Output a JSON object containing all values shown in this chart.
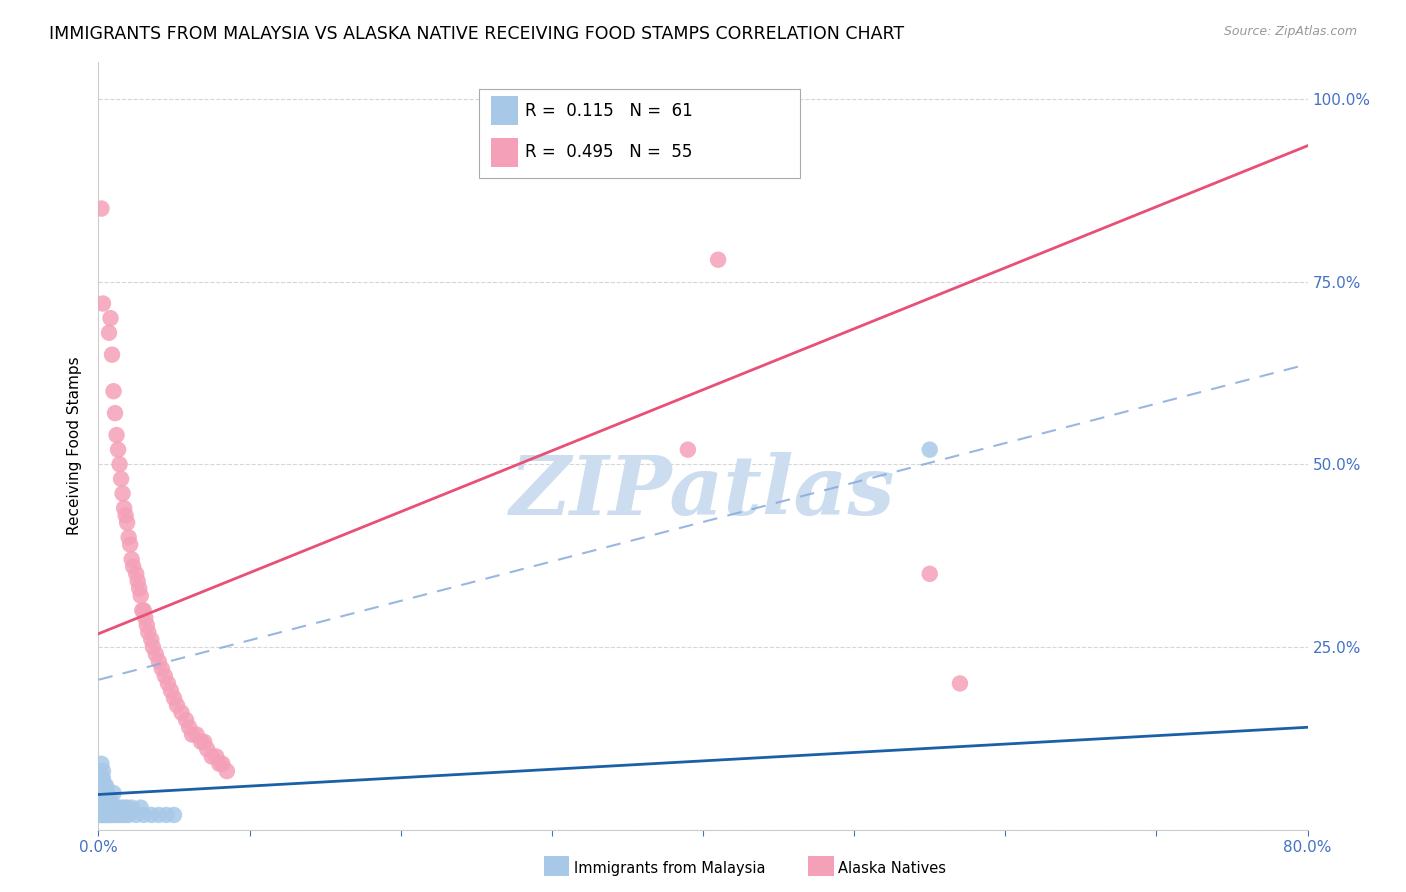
{
  "title": "IMMIGRANTS FROM MALAYSIA VS ALASKA NATIVE RECEIVING FOOD STAMPS CORRELATION CHART",
  "source": "Source: ZipAtlas.com",
  "ylabel": "Receiving Food Stamps",
  "xlim": [
    0.0,
    0.8
  ],
  "ylim": [
    0.0,
    1.05
  ],
  "malaysia_R": 0.115,
  "malaysia_N": 61,
  "alaska_R": 0.495,
  "alaska_N": 55,
  "malaysia_dot_color": "#a8c8e8",
  "alaska_dot_color": "#f4a0b8",
  "malaysia_line_color": "#1a5fa8",
  "alaska_line_color": "#e85075",
  "dashed_line_color": "#88aadd",
  "axis_color": "#4472c4",
  "grid_color": "#cccccc",
  "background_color": "#ffffff",
  "watermark_color": "#ccddf0",
  "malaysia_x": [
    0.001,
    0.001,
    0.001,
    0.001,
    0.001,
    0.001,
    0.002,
    0.002,
    0.002,
    0.002,
    0.002,
    0.002,
    0.002,
    0.003,
    0.003,
    0.003,
    0.003,
    0.003,
    0.003,
    0.004,
    0.004,
    0.004,
    0.004,
    0.004,
    0.005,
    0.005,
    0.005,
    0.005,
    0.005,
    0.006,
    0.006,
    0.006,
    0.007,
    0.007,
    0.007,
    0.008,
    0.008,
    0.009,
    0.009,
    0.01,
    0.01,
    0.01,
    0.011,
    0.012,
    0.013,
    0.014,
    0.015,
    0.016,
    0.017,
    0.018,
    0.019,
    0.02,
    0.022,
    0.025,
    0.028,
    0.03,
    0.035,
    0.04,
    0.045,
    0.05,
    0.55
  ],
  "malaysia_y": [
    0.02,
    0.03,
    0.04,
    0.05,
    0.06,
    0.08,
    0.02,
    0.03,
    0.04,
    0.05,
    0.06,
    0.07,
    0.09,
    0.02,
    0.03,
    0.04,
    0.05,
    0.07,
    0.08,
    0.02,
    0.03,
    0.04,
    0.05,
    0.06,
    0.02,
    0.03,
    0.04,
    0.05,
    0.06,
    0.02,
    0.03,
    0.05,
    0.02,
    0.03,
    0.04,
    0.02,
    0.04,
    0.02,
    0.03,
    0.02,
    0.03,
    0.05,
    0.03,
    0.02,
    0.03,
    0.02,
    0.03,
    0.02,
    0.03,
    0.02,
    0.03,
    0.02,
    0.03,
    0.02,
    0.03,
    0.02,
    0.02,
    0.02,
    0.02,
    0.02,
    0.52
  ],
  "alaska_x": [
    0.002,
    0.003,
    0.007,
    0.008,
    0.009,
    0.01,
    0.011,
    0.012,
    0.013,
    0.014,
    0.015,
    0.016,
    0.017,
    0.018,
    0.019,
    0.02,
    0.021,
    0.022,
    0.023,
    0.025,
    0.026,
    0.027,
    0.028,
    0.029,
    0.03,
    0.031,
    0.032,
    0.033,
    0.035,
    0.036,
    0.038,
    0.04,
    0.042,
    0.044,
    0.046,
    0.048,
    0.05,
    0.052,
    0.055,
    0.058,
    0.06,
    0.062,
    0.065,
    0.068,
    0.07,
    0.072,
    0.075,
    0.078,
    0.08,
    0.082,
    0.085,
    0.39,
    0.41,
    0.55,
    0.57
  ],
  "alaska_y": [
    0.85,
    0.72,
    0.68,
    0.7,
    0.65,
    0.6,
    0.57,
    0.54,
    0.52,
    0.5,
    0.48,
    0.46,
    0.44,
    0.43,
    0.42,
    0.4,
    0.39,
    0.37,
    0.36,
    0.35,
    0.34,
    0.33,
    0.32,
    0.3,
    0.3,
    0.29,
    0.28,
    0.27,
    0.26,
    0.25,
    0.24,
    0.23,
    0.22,
    0.21,
    0.2,
    0.19,
    0.18,
    0.17,
    0.16,
    0.15,
    0.14,
    0.13,
    0.13,
    0.12,
    0.12,
    0.11,
    0.1,
    0.1,
    0.09,
    0.09,
    0.08,
    0.52,
    0.78,
    0.35,
    0.2
  ],
  "malaysia_trend_slope": 0.115,
  "malaysia_trend_intercept": 0.048,
  "alaska_trend_slope": 0.835,
  "alaska_trend_intercept": 0.268,
  "dashed_trend_slope": 0.54,
  "dashed_trend_intercept": 0.205,
  "title_fontsize": 12.5,
  "tick_fontsize": 11,
  "label_fontsize": 11,
  "legend_fontsize": 12
}
